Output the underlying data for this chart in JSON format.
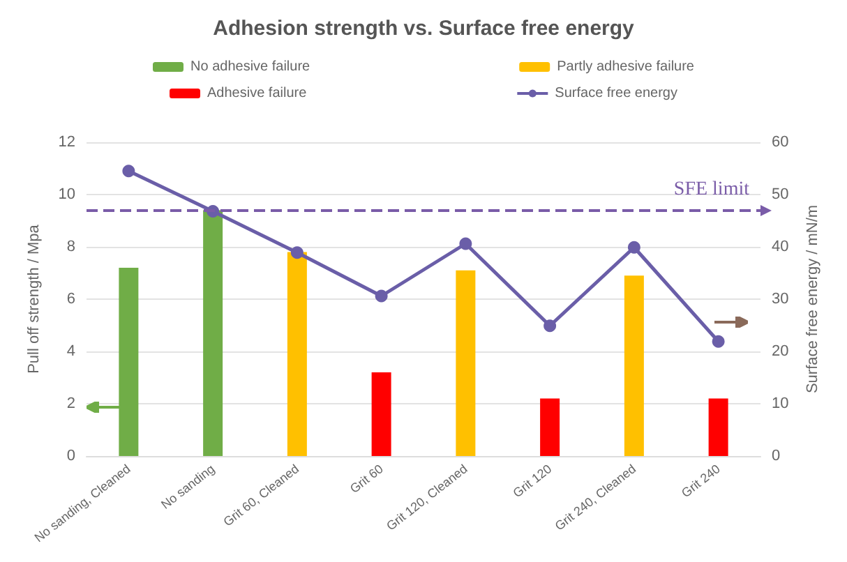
{
  "chart_data": {
    "type": "bar",
    "title": "Adhesion strength vs. Surface free energy",
    "categories": [
      "No sanding, Cleaned",
      "No sanding",
      "Grit 60, Cleaned",
      "Grit 60",
      "Grit 120, Cleaned",
      "Grit 120",
      "Grit 240, Cleaned",
      "Grit 240"
    ],
    "series": [
      {
        "name": "No adhesive failure",
        "color": "#70ad47",
        "values": [
          7.2,
          9.4,
          null,
          null,
          null,
          null,
          null,
          null
        ]
      },
      {
        "name": "Partly adhesive failure",
        "color": "#ffc000",
        "values": [
          null,
          null,
          7.8,
          null,
          7.1,
          null,
          6.9,
          null
        ]
      },
      {
        "name": "Adhesive failure",
        "color": "#ff0000",
        "values": [
          null,
          null,
          null,
          3.2,
          null,
          2.2,
          null,
          2.2
        ]
      },
      {
        "name": "Surface free energy",
        "type": "line",
        "axis": "y2",
        "color": "#6a5ea8",
        "marker": "circle",
        "values": [
          54.5,
          46.8,
          38.9,
          30.6,
          40.6,
          24.9,
          39.9,
          21.9
        ]
      }
    ],
    "ylabel": "Pull off strength / Mpa",
    "y2label": "Surface free energy / mN/m",
    "ylim": [
      0,
      12
    ],
    "yticks": [
      0,
      2,
      4,
      6,
      8,
      10,
      12
    ],
    "y2lim": [
      0,
      60
    ],
    "y2ticks": [
      0,
      10,
      20,
      30,
      40,
      50,
      60
    ],
    "ref_lines": [
      {
        "axis": "y2",
        "value": 47,
        "label": "SFE limit",
        "color": "#7a5ca8",
        "line_style": "dashed"
      }
    ],
    "grid": "y",
    "legend": "top"
  }
}
